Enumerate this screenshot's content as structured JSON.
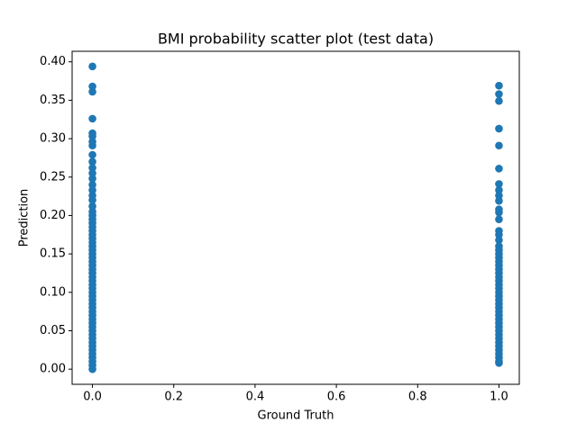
{
  "chart_data": {
    "type": "scatter",
    "title": "BMI probability scatter plot (test data)",
    "xlabel": "Ground Truth",
    "ylabel": "Prediction",
    "color": "#1f77b4",
    "x": [
      0,
      0,
      0,
      0,
      0,
      0,
      0,
      0,
      0,
      0,
      0,
      0,
      0,
      0,
      0,
      0,
      0,
      0,
      0,
      0,
      0,
      0,
      0,
      0,
      0,
      0,
      0,
      0,
      0,
      0,
      0,
      0,
      0,
      0,
      0,
      0,
      0,
      0,
      0,
      0,
      0,
      0,
      0,
      0,
      0,
      0,
      0,
      0,
      0,
      0,
      0,
      0,
      0,
      0,
      0,
      0,
      0,
      0,
      0,
      0,
      1,
      1,
      1,
      1,
      1,
      1,
      1,
      1,
      1,
      1,
      1,
      1,
      1,
      1,
      1,
      1,
      1,
      1,
      1,
      1,
      1,
      1,
      1,
      1,
      1,
      1,
      1,
      1,
      1,
      1,
      1,
      1,
      1,
      1,
      1,
      1,
      1,
      1,
      1,
      1,
      1,
      1,
      1,
      1,
      1,
      1,
      1,
      1
    ],
    "values": [
      0.394,
      0.368,
      0.361,
      0.326,
      0.307,
      0.303,
      0.296,
      0.291,
      0.279,
      0.27,
      0.262,
      0.255,
      0.248,
      0.24,
      0.233,
      0.226,
      0.22,
      0.212,
      0.205,
      0.2,
      0.195,
      0.19,
      0.185,
      0.18,
      0.175,
      0.17,
      0.165,
      0.16,
      0.155,
      0.15,
      0.145,
      0.14,
      0.135,
      0.13,
      0.125,
      0.12,
      0.115,
      0.11,
      0.105,
      0.1,
      0.095,
      0.09,
      0.085,
      0.08,
      0.075,
      0.07,
      0.065,
      0.06,
      0.055,
      0.05,
      0.045,
      0.04,
      0.035,
      0.03,
      0.025,
      0.02,
      0.015,
      0.01,
      0.005,
      0.0,
      0.369,
      0.358,
      0.349,
      0.313,
      0.291,
      0.261,
      0.241,
      0.233,
      0.226,
      0.219,
      0.208,
      0.204,
      0.195,
      0.18,
      0.175,
      0.168,
      0.16,
      0.155,
      0.15,
      0.145,
      0.14,
      0.135,
      0.13,
      0.125,
      0.12,
      0.115,
      0.11,
      0.105,
      0.1,
      0.095,
      0.09,
      0.085,
      0.08,
      0.075,
      0.07,
      0.065,
      0.06,
      0.055,
      0.05,
      0.045,
      0.04,
      0.035,
      0.03,
      0.025,
      0.02,
      0.015,
      0.01,
      0.008
    ],
    "xlim": [
      -0.05,
      1.05
    ],
    "ylim": [
      -0.0197,
      0.4137
    ],
    "xticks": [
      {
        "value": 0,
        "label": "0.0"
      },
      {
        "value": 0.2,
        "label": "0.2"
      },
      {
        "value": 0.4,
        "label": "0.4"
      },
      {
        "value": 0.6,
        "label": "0.6"
      },
      {
        "value": 0.8,
        "label": "0.8"
      },
      {
        "value": 1,
        "label": "1.0"
      }
    ],
    "yticks": [
      {
        "value": 0,
        "label": "0.00"
      },
      {
        "value": 0.05,
        "label": "0.05"
      },
      {
        "value": 0.1,
        "label": "0.10"
      },
      {
        "value": 0.15,
        "label": "0.15"
      },
      {
        "value": 0.2,
        "label": "0.20"
      },
      {
        "value": 0.25,
        "label": "0.25"
      },
      {
        "value": 0.3,
        "label": "0.30"
      },
      {
        "value": 0.35,
        "label": "0.35"
      },
      {
        "value": 0.4,
        "label": "0.40"
      }
    ],
    "grid": false
  }
}
